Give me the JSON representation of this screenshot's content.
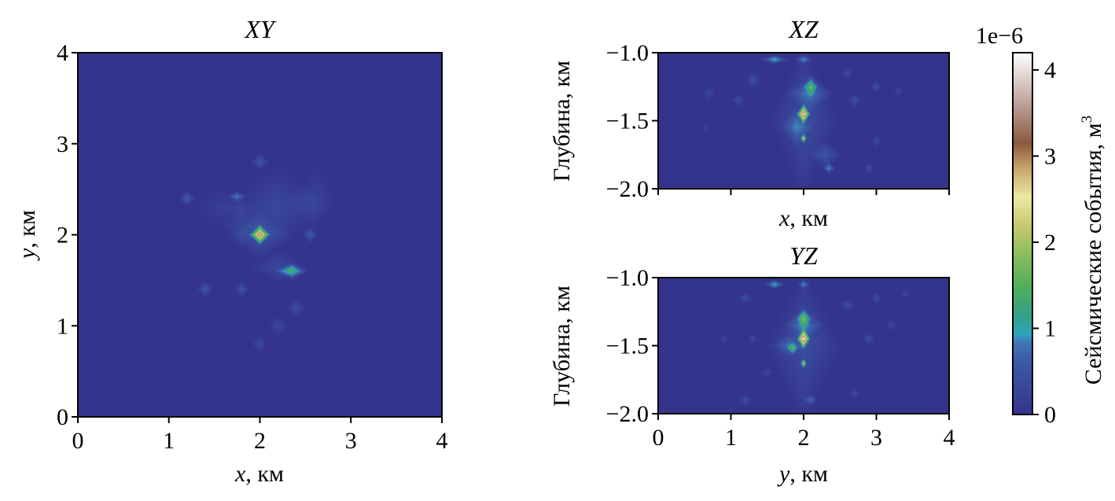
{
  "chart_data": [
    {
      "type": "heatmap",
      "title": "XY",
      "xlabel_var": "x",
      "xlabel_unit": ", км",
      "ylabel_var": "y",
      "ylabel_unit": ", км",
      "xlim": [
        0,
        4
      ],
      "ylim": [
        0,
        4
      ],
      "xticks": [
        "0",
        "1",
        "2",
        "3",
        "4"
      ],
      "yticks": [
        "0",
        "1",
        "2",
        "3",
        "4"
      ],
      "background_value": 0.0,
      "blobs": [
        {
          "x": 2.0,
          "y": 2.0,
          "sx": 0.35,
          "sy": 0.3,
          "v": 0.55
        },
        {
          "x": 2.2,
          "y": 1.65,
          "sx": 0.35,
          "sy": 0.2,
          "v": 0.35
        },
        {
          "x": 1.8,
          "y": 2.1,
          "sx": 0.25,
          "sy": 0.3,
          "v": 0.3
        },
        {
          "x": 2.2,
          "y": 2.3,
          "sx": 0.6,
          "sy": 0.5,
          "v": 0.35
        },
        {
          "x": 2.6,
          "y": 2.4,
          "sx": 0.3,
          "sy": 0.35,
          "v": 0.25
        },
        {
          "x": 1.6,
          "y": 2.3,
          "sx": 0.35,
          "sy": 0.25,
          "v": 0.2
        },
        {
          "x": 1.75,
          "y": 2.42,
          "sx": 0.12,
          "sy": 0.07,
          "v": 0.9
        },
        {
          "x": 2.0,
          "y": 2.8,
          "sx": 0.12,
          "sy": 0.1,
          "v": 0.6
        },
        {
          "x": 1.2,
          "y": 2.4,
          "sx": 0.1,
          "sy": 0.1,
          "v": 0.7
        },
        {
          "x": 2.55,
          "y": 2.0,
          "sx": 0.1,
          "sy": 0.1,
          "v": 0.7
        },
        {
          "x": 1.4,
          "y": 1.4,
          "sx": 0.1,
          "sy": 0.1,
          "v": 0.65
        },
        {
          "x": 1.8,
          "y": 1.4,
          "sx": 0.1,
          "sy": 0.1,
          "v": 0.55
        },
        {
          "x": 2.4,
          "y": 1.2,
          "sx": 0.12,
          "sy": 0.12,
          "v": 0.45
        },
        {
          "x": 2.2,
          "y": 1.0,
          "sx": 0.12,
          "sy": 0.12,
          "v": 0.35
        },
        {
          "x": 2.0,
          "y": 0.8,
          "sx": 0.1,
          "sy": 0.1,
          "v": 0.45
        },
        {
          "x": 2.35,
          "y": 1.6,
          "sx": 0.2,
          "sy": 0.1,
          "v": 1.4
        },
        {
          "x": 2.0,
          "y": 2.0,
          "sx": 0.12,
          "sy": 0.12,
          "v": 2.6
        },
        {
          "x": 2.0,
          "y": 2.0,
          "sx": 0.045,
          "sy": 0.045,
          "v": 1.2
        }
      ]
    },
    {
      "type": "heatmap",
      "title": "XZ",
      "xlabel_var": "x",
      "xlabel_unit": ", км",
      "ylabel": "Глубина, км",
      "xlim": [
        0,
        4
      ],
      "ylim": [
        -2.0,
        -1.0
      ],
      "yticks": [
        "−1.0",
        "−1.5",
        "−2.0"
      ],
      "yticks_values": [
        -1.0,
        -1.5,
        -2.0
      ],
      "show_xtick_labels": false,
      "background_value": 0.0,
      "blobs": [
        {
          "x": 2.0,
          "y": -1.5,
          "sx": 0.5,
          "sy": 0.6,
          "v": 0.45
        },
        {
          "x": 2.1,
          "y": -1.3,
          "sx": 0.35,
          "sy": 0.15,
          "v": 0.7
        },
        {
          "x": 1.9,
          "y": -1.55,
          "sx": 0.25,
          "sy": 0.15,
          "v": 0.6
        },
        {
          "x": 2.3,
          "y": -1.75,
          "sx": 0.25,
          "sy": 0.12,
          "v": 0.55
        },
        {
          "x": 1.6,
          "y": -1.05,
          "sx": 0.2,
          "sy": 0.04,
          "v": 1.2
        },
        {
          "x": 2.0,
          "y": -1.05,
          "sx": 0.15,
          "sy": 0.04,
          "v": 0.9
        },
        {
          "x": 1.3,
          "y": -1.2,
          "sx": 0.12,
          "sy": 0.07,
          "v": 0.5
        },
        {
          "x": 0.7,
          "y": -1.3,
          "sx": 0.1,
          "sy": 0.06,
          "v": 0.4
        },
        {
          "x": 1.1,
          "y": -1.35,
          "sx": 0.1,
          "sy": 0.06,
          "v": 0.45
        },
        {
          "x": 2.7,
          "y": -1.35,
          "sx": 0.1,
          "sy": 0.06,
          "v": 0.5
        },
        {
          "x": 3.0,
          "y": -1.25,
          "sx": 0.1,
          "sy": 0.05,
          "v": 0.45
        },
        {
          "x": 2.6,
          "y": -1.15,
          "sx": 0.1,
          "sy": 0.05,
          "v": 0.45
        },
        {
          "x": 3.3,
          "y": -1.28,
          "sx": 0.08,
          "sy": 0.05,
          "v": 0.35
        },
        {
          "x": 0.65,
          "y": -1.55,
          "sx": 0.06,
          "sy": 0.04,
          "v": 0.4
        },
        {
          "x": 3.0,
          "y": -1.65,
          "sx": 0.08,
          "sy": 0.05,
          "v": 0.45
        },
        {
          "x": 2.9,
          "y": -1.85,
          "sx": 0.08,
          "sy": 0.05,
          "v": 0.45
        },
        {
          "x": 2.1,
          "y": -1.25,
          "sx": 0.12,
          "sy": 0.08,
          "v": 1.1
        },
        {
          "x": 2.35,
          "y": -1.85,
          "sx": 0.1,
          "sy": 0.05,
          "v": 1.0
        },
        {
          "x": 2.0,
          "y": -1.45,
          "sx": 0.1,
          "sy": 0.08,
          "v": 3.0
        },
        {
          "x": 2.0,
          "y": -1.45,
          "sx": 0.035,
          "sy": 0.035,
          "v": 1.4
        },
        {
          "x": 2.0,
          "y": -1.63,
          "sx": 0.05,
          "sy": 0.04,
          "v": 2.0
        }
      ]
    },
    {
      "type": "heatmap",
      "title": "YZ",
      "xlabel_var": "y",
      "xlabel_unit": ", км",
      "ylabel": "Глубина, км",
      "xlim": [
        0,
        4
      ],
      "ylim": [
        -2.0,
        -1.0
      ],
      "xticks": [
        "0",
        "1",
        "2",
        "3",
        "4"
      ],
      "yticks": [
        "−1.0",
        "−1.5",
        "−2.0"
      ],
      "yticks_values": [
        -1.0,
        -1.5,
        -2.0
      ],
      "background_value": 0.0,
      "blobs": [
        {
          "x": 2.0,
          "y": -1.5,
          "sx": 0.55,
          "sy": 0.6,
          "v": 0.45
        },
        {
          "x": 2.0,
          "y": -1.35,
          "sx": 0.3,
          "sy": 0.15,
          "v": 0.7
        },
        {
          "x": 1.8,
          "y": -1.5,
          "sx": 0.25,
          "sy": 0.1,
          "v": 0.6
        },
        {
          "x": 1.6,
          "y": -1.05,
          "sx": 0.15,
          "sy": 0.04,
          "v": 1.2
        },
        {
          "x": 2.0,
          "y": -1.05,
          "sx": 0.1,
          "sy": 0.04,
          "v": 0.9
        },
        {
          "x": 1.2,
          "y": -1.15,
          "sx": 0.12,
          "sy": 0.05,
          "v": 0.5
        },
        {
          "x": 2.6,
          "y": -1.2,
          "sx": 0.12,
          "sy": 0.05,
          "v": 0.5
        },
        {
          "x": 3.0,
          "y": -1.15,
          "sx": 0.1,
          "sy": 0.05,
          "v": 0.45
        },
        {
          "x": 3.4,
          "y": -1.12,
          "sx": 0.08,
          "sy": 0.04,
          "v": 0.35
        },
        {
          "x": 1.3,
          "y": -1.45,
          "sx": 0.08,
          "sy": 0.05,
          "v": 0.4
        },
        {
          "x": 0.9,
          "y": -1.45,
          "sx": 0.08,
          "sy": 0.05,
          "v": 0.35
        },
        {
          "x": 2.9,
          "y": -1.45,
          "sx": 0.1,
          "sy": 0.05,
          "v": 0.5
        },
        {
          "x": 3.2,
          "y": -1.35,
          "sx": 0.08,
          "sy": 0.05,
          "v": 0.4
        },
        {
          "x": 1.2,
          "y": -1.9,
          "sx": 0.1,
          "sy": 0.05,
          "v": 0.5
        },
        {
          "x": 2.1,
          "y": -1.9,
          "sx": 0.12,
          "sy": 0.05,
          "v": 0.7
        },
        {
          "x": 2.7,
          "y": -1.85,
          "sx": 0.08,
          "sy": 0.04,
          "v": 0.4
        },
        {
          "x": 1.5,
          "y": -1.7,
          "sx": 0.1,
          "sy": 0.05,
          "v": 0.35
        },
        {
          "x": 2.0,
          "y": -1.3,
          "sx": 0.12,
          "sy": 0.08,
          "v": 1.1
        },
        {
          "x": 1.85,
          "y": -1.52,
          "sx": 0.08,
          "sy": 0.05,
          "v": 1.0
        },
        {
          "x": 2.0,
          "y": -1.45,
          "sx": 0.1,
          "sy": 0.08,
          "v": 3.0
        },
        {
          "x": 2.0,
          "y": -1.45,
          "sx": 0.035,
          "sy": 0.035,
          "v": 1.4
        },
        {
          "x": 2.0,
          "y": -1.63,
          "sx": 0.05,
          "sy": 0.04,
          "v": 2.0
        }
      ]
    }
  ],
  "colorbar": {
    "label": "Сейсмические события, м",
    "label_superscript": "3",
    "offset_text": "1e−6",
    "vmin": 0,
    "vmax": 4.2,
    "ticks": [
      0,
      1,
      2,
      3,
      4
    ],
    "tick_labels": [
      "0",
      "1",
      "2",
      "3",
      "4"
    ],
    "colormap": "gist_earth",
    "stops": [
      {
        "v": 0.0,
        "color": "#35348c"
      },
      {
        "v": 0.15,
        "color": "#3c5aa8"
      },
      {
        "v": 0.2,
        "color": "#3f78b5"
      },
      {
        "v": 0.22,
        "color": "#2fa3c0"
      },
      {
        "v": 0.27,
        "color": "#33a08a"
      },
      {
        "v": 0.35,
        "color": "#4eae5b"
      },
      {
        "v": 0.45,
        "color": "#8fbf5e"
      },
      {
        "v": 0.52,
        "color": "#c5c86d"
      },
      {
        "v": 0.6,
        "color": "#ece9a3"
      },
      {
        "v": 0.68,
        "color": "#c8a46a"
      },
      {
        "v": 0.75,
        "color": "#8b5a3e"
      },
      {
        "v": 0.85,
        "color": "#b99b92"
      },
      {
        "v": 1.0,
        "color": "#ffffff"
      }
    ]
  }
}
